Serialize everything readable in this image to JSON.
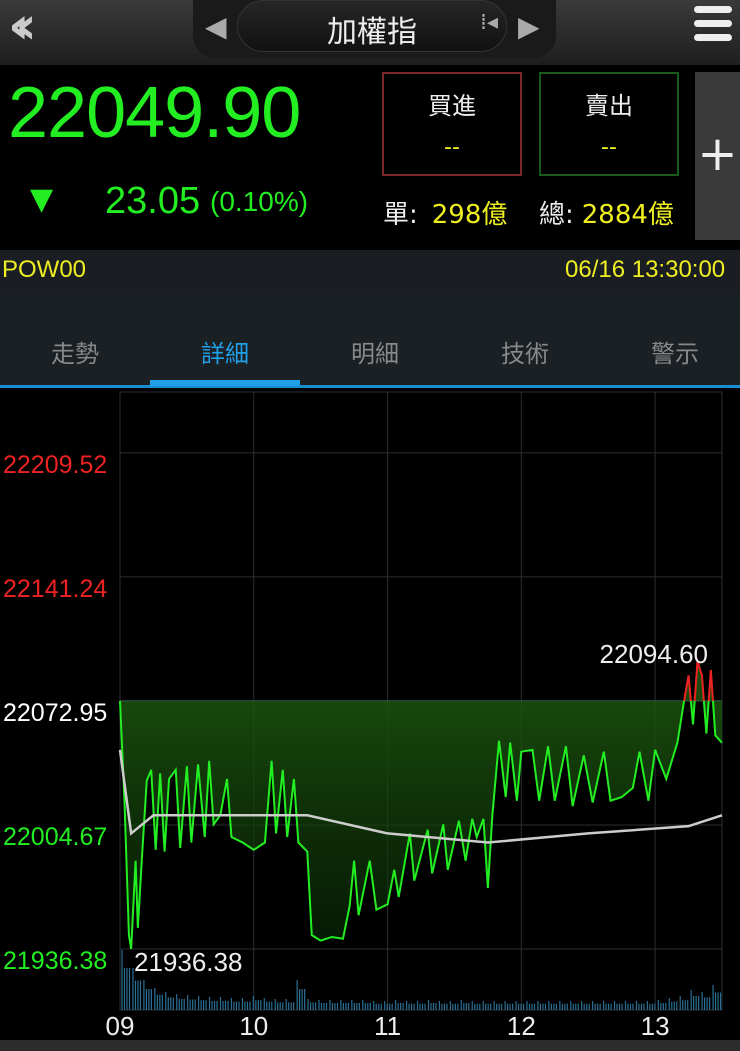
{
  "header": {
    "title": "加權指",
    "back_icon": "double-chevron-left-icon",
    "prev_icon": "triangle-left-icon",
    "next_icon": "triangle-right-icon",
    "grip_icon": "grip-icon",
    "menu_icon": "hamburger-icon"
  },
  "quote": {
    "price": "22049.90",
    "direction_icon": "triangle-down-icon",
    "change": "23.05",
    "change_pct": "(0.10%)",
    "buy_label": "買進",
    "buy_value": "--",
    "sell_label": "賣出",
    "sell_value": "--",
    "single_label": "單:",
    "single_value": "298億",
    "total_label": "總:",
    "total_value": "2884億",
    "add_icon": "plus-icon",
    "color_down": "#22ee22",
    "color_up": "#ee2222"
  },
  "info": {
    "symbol": "POW00",
    "datetime": "06/16 13:30:00"
  },
  "tabs": [
    {
      "label": "走勢"
    },
    {
      "label": "詳細",
      "active": true
    },
    {
      "label": "明細"
    },
    {
      "label": "技術"
    },
    {
      "label": "警示"
    }
  ],
  "chart_data": {
    "type": "line",
    "reference": 22072.95,
    "ylim": [
      21902.8,
      22243
    ],
    "xlim": [
      "09:00",
      "13:30"
    ],
    "y_ticks": [
      {
        "label": "22209.52",
        "value": 22209.52,
        "color": "#ee2222"
      },
      {
        "label": "22141.24",
        "value": 22141.24,
        "color": "#ee2222"
      },
      {
        "label": "22072.95",
        "value": 22072.95,
        "color": "#ffffff"
      },
      {
        "label": "22004.67",
        "value": 22004.67,
        "color": "#22ee22"
      },
      {
        "label": "21936.38",
        "value": 21936.38,
        "color": "#22ee22"
      }
    ],
    "x_ticks": [
      "09",
      "10",
      "11",
      "12",
      "13"
    ],
    "high_label": "22094.60",
    "low_label": "21936.38",
    "price": [
      [
        "09:00",
        22072.95
      ],
      [
        "09:02",
        22018
      ],
      [
        "09:04",
        21944
      ],
      [
        "09:05",
        21936.38
      ],
      [
        "09:07",
        21985
      ],
      [
        "09:08",
        21948
      ],
      [
        "09:10",
        21990
      ],
      [
        "09:12",
        22029
      ],
      [
        "09:14",
        22035
      ],
      [
        "09:16",
        21991
      ],
      [
        "09:18",
        22033
      ],
      [
        "09:20",
        21990
      ],
      [
        "09:22",
        22030
      ],
      [
        "09:25",
        22035
      ],
      [
        "09:27",
        21992
      ],
      [
        "09:30",
        22037
      ],
      [
        "09:32",
        21995
      ],
      [
        "09:35",
        22038
      ],
      [
        "09:38",
        21998
      ],
      [
        "09:40",
        22040
      ],
      [
        "09:42",
        22005
      ],
      [
        "09:45",
        22010
      ],
      [
        "09:48",
        22030
      ],
      [
        "09:50",
        21998
      ],
      [
        "09:55",
        21995
      ],
      [
        "10:00",
        21991
      ],
      [
        "10:05",
        21995
      ],
      [
        "10:08",
        22040
      ],
      [
        "10:10",
        22000
      ],
      [
        "10:13",
        22035
      ],
      [
        "10:15",
        21998
      ],
      [
        "10:18",
        22030
      ],
      [
        "10:20",
        21995
      ],
      [
        "10:24",
        21990
      ],
      [
        "10:26",
        21944
      ],
      [
        "10:30",
        21941
      ],
      [
        "10:35",
        21943
      ],
      [
        "10:40",
        21942
      ],
      [
        "10:43",
        21960
      ],
      [
        "10:45",
        21985
      ],
      [
        "10:47",
        21955
      ],
      [
        "10:52",
        21985
      ],
      [
        "10:55",
        21958
      ],
      [
        "11:00",
        21961
      ],
      [
        "11:03",
        21980
      ],
      [
        "11:05",
        21965
      ],
      [
        "11:10",
        22000
      ],
      [
        "11:12",
        21974
      ],
      [
        "11:18",
        22002
      ],
      [
        "11:20",
        21978
      ],
      [
        "11:25",
        22005
      ],
      [
        "11:27",
        21980
      ],
      [
        "11:32",
        22007
      ],
      [
        "11:35",
        21985
      ],
      [
        "11:38",
        22008
      ],
      [
        "11:40",
        21998
      ],
      [
        "11:43",
        22008
      ],
      [
        "11:45",
        21970
      ],
      [
        "11:47",
        22010
      ],
      [
        "11:50",
        22051
      ],
      [
        "11:53",
        22020
      ],
      [
        "11:55",
        22050
      ],
      [
        "11:58",
        22018
      ],
      [
        "12:00",
        22045
      ],
      [
        "12:05",
        22046
      ],
      [
        "12:08",
        22018
      ],
      [
        "12:12",
        22048
      ],
      [
        "12:15",
        22018
      ],
      [
        "12:20",
        22048
      ],
      [
        "12:23",
        22015
      ],
      [
        "12:28",
        22043
      ],
      [
        "12:32",
        22017
      ],
      [
        "12:37",
        22045
      ],
      [
        "12:40",
        22018
      ],
      [
        "12:45",
        22020
      ],
      [
        "12:50",
        22025
      ],
      [
        "12:53",
        22045
      ],
      [
        "12:57",
        22018
      ],
      [
        "13:00",
        22046
      ],
      [
        "13:05",
        22030
      ],
      [
        "13:10",
        22050
      ],
      [
        "13:13",
        22073
      ],
      [
        "13:15",
        22087
      ],
      [
        "13:17",
        22060
      ],
      [
        "13:19",
        22094.6
      ],
      [
        "13:21",
        22087
      ],
      [
        "13:23",
        22055
      ],
      [
        "13:25",
        22090
      ],
      [
        "13:27",
        22054
      ],
      [
        "13:30",
        22049.9
      ]
    ],
    "average": [
      [
        "09:00",
        22046
      ],
      [
        "09:05",
        22000
      ],
      [
        "09:15",
        22010
      ],
      [
        "10:24",
        22010
      ],
      [
        "11:00",
        22000
      ],
      [
        "11:45",
        21995
      ],
      [
        "12:30",
        22000
      ],
      [
        "13:15",
        22004
      ],
      [
        "13:30",
        22010
      ]
    ],
    "volume_relative": [
      60,
      42,
      30,
      22,
      18,
      16,
      15,
      14,
      13,
      13,
      12,
      12,
      14,
      12,
      11,
      11,
      30,
      11,
      10,
      10,
      10,
      10,
      10,
      9,
      9,
      10,
      9,
      9,
      10,
      9,
      9,
      10,
      9,
      9,
      9,
      9,
      9,
      9,
      9,
      9,
      9,
      9,
      9,
      9,
      9,
      9,
      9,
      9,
      9,
      10,
      12,
      14,
      20,
      18,
      25
    ],
    "colors": {
      "line": "#22ee22",
      "up": "#ee2222",
      "average": "#cccccc",
      "volume": "#2a6f95",
      "grid": "#2a2f33"
    }
  }
}
